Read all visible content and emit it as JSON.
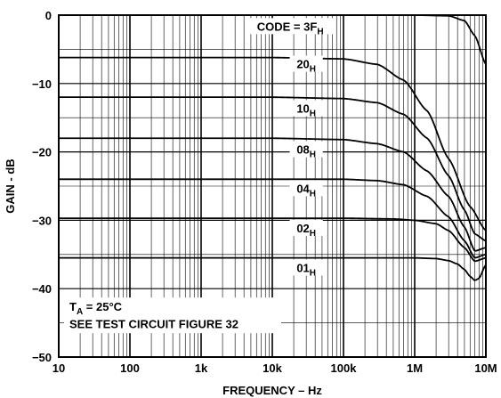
{
  "chart_data": {
    "type": "line",
    "title": "",
    "xlabel": "FREQUENCY – Hz",
    "ylabel": "GAIN - dB",
    "x_scale": "log",
    "xlim": [
      10,
      10000000
    ],
    "ylim": [
      -50,
      0
    ],
    "grid": true,
    "x_ticks": [
      {
        "value": 10,
        "label": "10"
      },
      {
        "value": 100,
        "label": "100"
      },
      {
        "value": 1000,
        "label": "1k"
      },
      {
        "value": 10000,
        "label": "10k"
      },
      {
        "value": 100000,
        "label": "100k"
      },
      {
        "value": 1000000,
        "label": "1M"
      },
      {
        "value": 10000000,
        "label": "10M"
      }
    ],
    "y_ticks": [
      {
        "value": 0,
        "label": "0"
      },
      {
        "value": -10,
        "label": "−10"
      },
      {
        "value": -20,
        "label": "−20"
      },
      {
        "value": -30,
        "label": "−30"
      },
      {
        "value": -40,
        "label": "−40"
      },
      {
        "value": -50,
        "label": "−50"
      }
    ],
    "series": [
      {
        "name": "3F",
        "name_sub": "H",
        "label_prefix": "CODE = ",
        "x": [
          10,
          100000,
          1000000,
          3000000,
          5000000,
          7000000,
          10000000
        ],
        "y": [
          0,
          0,
          0,
          -0.1,
          -0.8,
          -3,
          -7.2
        ]
      },
      {
        "name": "20",
        "name_sub": "H",
        "label_prefix": "",
        "x": [
          10,
          10000,
          100000,
          300000,
          700000,
          1500000,
          3000000,
          6000000,
          10000000
        ],
        "y": [
          -6.2,
          -6.2,
          -6.4,
          -7.2,
          -9.5,
          -14,
          -21,
          -28,
          -31.5
        ]
      },
      {
        "name": "10",
        "name_sub": "H",
        "label_prefix": "",
        "x": [
          10,
          10000,
          100000,
          300000,
          700000,
          1500000,
          3000000,
          5000000,
          7000000,
          10000000
        ],
        "y": [
          -12,
          -12,
          -12.2,
          -12.8,
          -14.5,
          -18,
          -23.5,
          -28.5,
          -32,
          -33
        ]
      },
      {
        "name": "08",
        "name_sub": "H",
        "label_prefix": "",
        "x": [
          10,
          10000,
          100000,
          300000,
          700000,
          1500000,
          3000000,
          5000000,
          7000000,
          10000000
        ],
        "y": [
          -18,
          -18,
          -18.2,
          -18.8,
          -20,
          -22.8,
          -26.5,
          -31,
          -34.5,
          -34
        ]
      },
      {
        "name": "04",
        "name_sub": "H",
        "label_prefix": "",
        "x": [
          10,
          10000,
          100000,
          300000,
          700000,
          1500000,
          3000000,
          5000000,
          7000000,
          10000000
        ],
        "y": [
          -24,
          -24,
          -24,
          -24.2,
          -24.8,
          -26.5,
          -29.5,
          -33,
          -35.5,
          -35
        ]
      },
      {
        "name": "02",
        "name_sub": "H",
        "label_prefix": "",
        "x": [
          10,
          100000,
          500000,
          1000000,
          2000000,
          3000000,
          5000000,
          7000000,
          10000000
        ],
        "y": [
          -29.7,
          -29.7,
          -29.8,
          -30,
          -30.5,
          -31.5,
          -34,
          -36,
          -35.5
        ]
      },
      {
        "name": "01",
        "name_sub": "H",
        "label_prefix": "",
        "x": [
          10,
          100000,
          1000000,
          2000000,
          3000000,
          4000000,
          5000000,
          6000000,
          7000000,
          8000000,
          10000000
        ],
        "y": [
          -35.5,
          -35.5,
          -35.5,
          -35.6,
          -35.9,
          -36.4,
          -37.2,
          -38.2,
          -38.8,
          -38.5,
          -36.5
        ]
      }
    ],
    "annotations": [
      {
        "text": "T",
        "sub": "A",
        "rest": " = 25°C"
      },
      {
        "text": "SEE TEST CIRCUIT FIGURE 32",
        "sub": "",
        "rest": ""
      }
    ]
  }
}
